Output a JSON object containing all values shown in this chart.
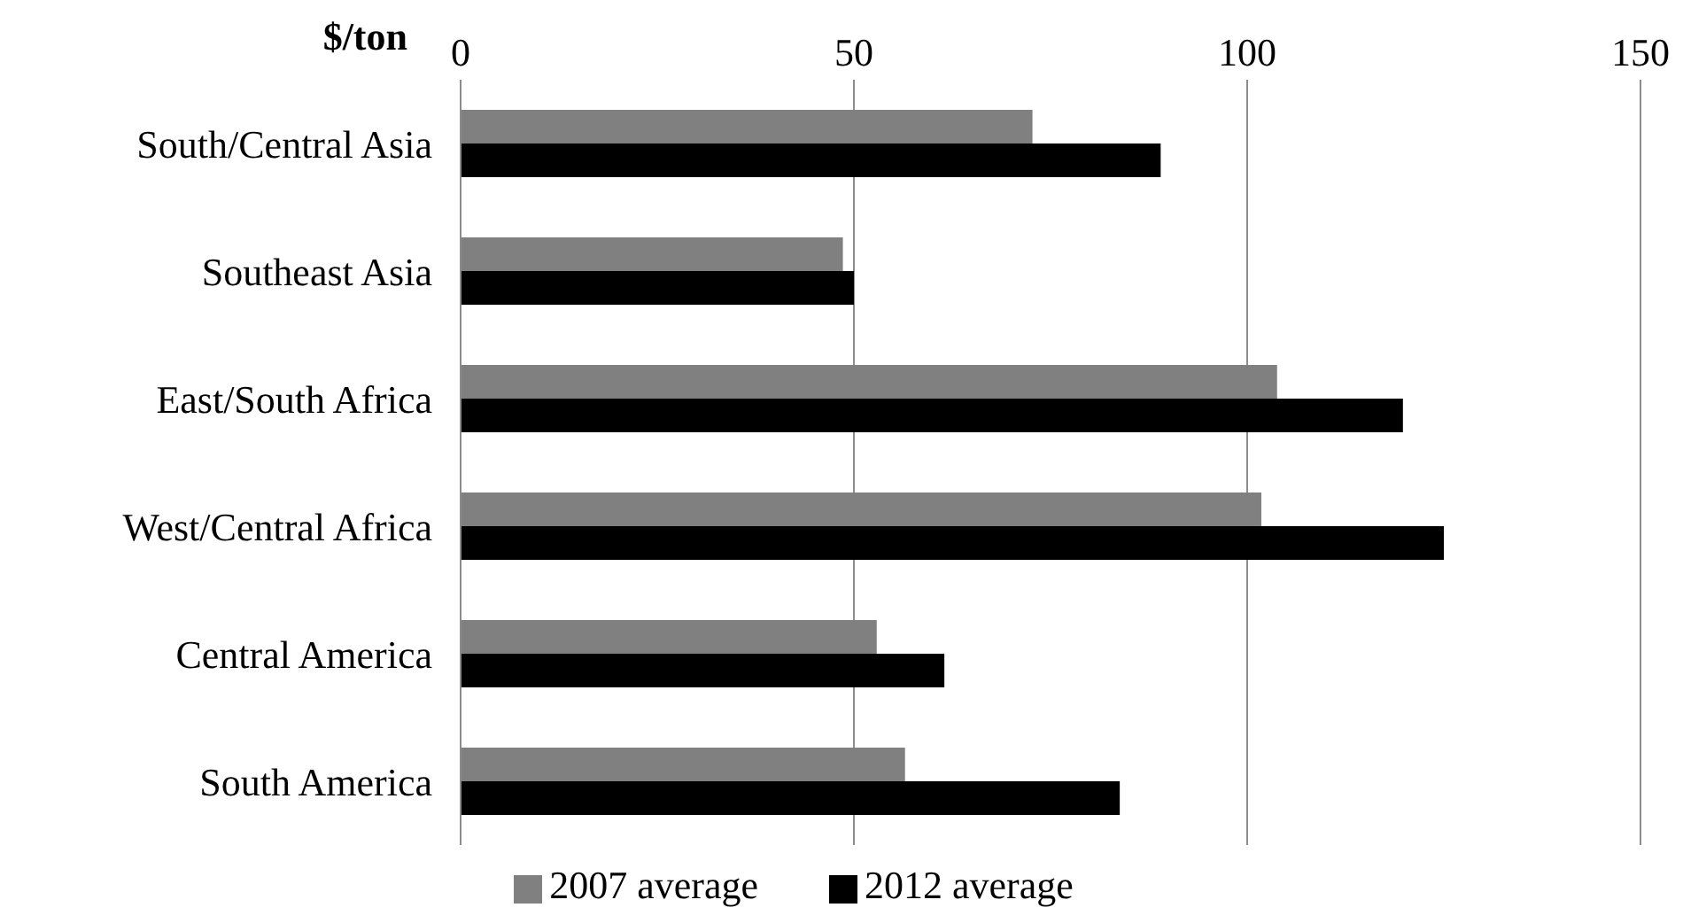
{
  "chart_data": {
    "type": "bar",
    "orientation": "horizontal",
    "xlabel": "$/ton",
    "categories": [
      "South/Central Asia",
      "Southeast Asia",
      "East/South Africa",
      "West/Central Africa",
      "Central America",
      "South America"
    ],
    "series": [
      {
        "name": "2007 average",
        "color": "#808080",
        "values": [
          72.7,
          48.6,
          103.8,
          101.8,
          52.9,
          56.5
        ]
      },
      {
        "name": "2012 average",
        "color": "#000000",
        "values": [
          89,
          50,
          119.8,
          125,
          61.5,
          83.8
        ]
      }
    ],
    "xlim": [
      0,
      150
    ],
    "xticks": [
      0,
      50,
      100,
      150
    ],
    "grid": "x",
    "legend": "bottom"
  }
}
